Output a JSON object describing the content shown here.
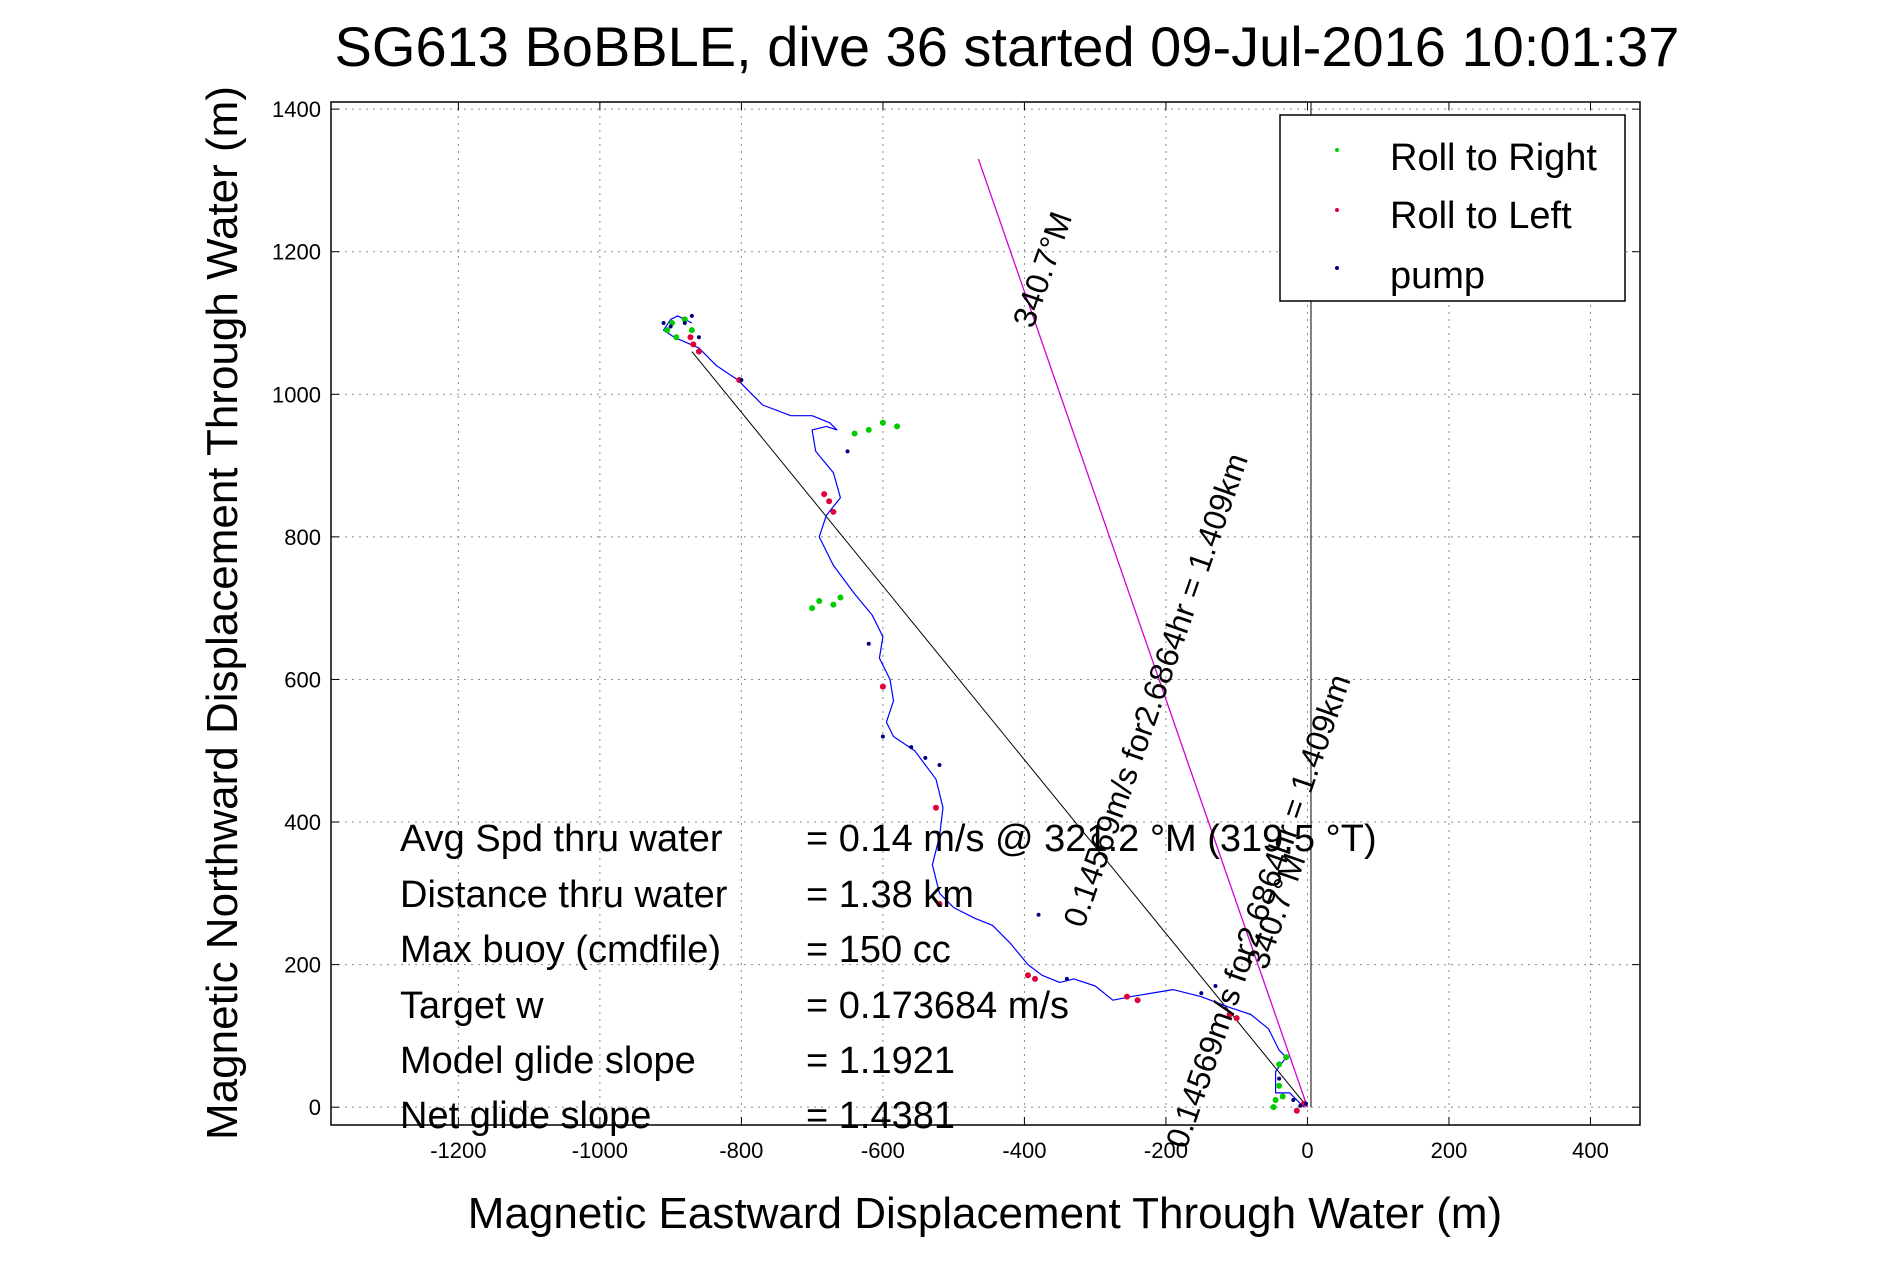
{
  "chart_data": {
    "type": "scatter",
    "title": "SG613 BoBBLE, dive 36 started 09-Jul-2016 10:01:37",
    "xlabel": "Magnetic Eastward Displacement Through Water (m)",
    "ylabel": "Magnetic Northward Displacement Through Water (m)",
    "xlim": [
      -1380,
      470
    ],
    "ylim": [
      -25,
      1410
    ],
    "xticks": [
      -1200,
      -1000,
      -800,
      -600,
      -400,
      -200,
      0,
      200,
      400
    ],
    "yticks": [
      0,
      200,
      400,
      600,
      800,
      1000,
      1200,
      1400
    ],
    "xtick_labels": [
      "-1200",
      "-1000",
      "-800",
      "-600",
      "-400",
      "-200",
      "0",
      "200",
      "400"
    ],
    "ytick_labels": [
      "0",
      "200",
      "400",
      "600",
      "800",
      "1000",
      "1200",
      "1400"
    ],
    "grid": true,
    "legend_position": "top-right",
    "legend": [
      {
        "label": "Roll to Right",
        "color": "#00cc00"
      },
      {
        "label": "Roll to Left",
        "color": "#e0003c"
      },
      {
        "label": "pump",
        "color": "#000080"
      }
    ],
    "track_color": "#0000ff",
    "track": {
      "x": [
        -5,
        -25,
        -45,
        -45,
        -30,
        -40,
        -55,
        -80,
        -110,
        -150,
        -190,
        -220,
        -250,
        -275,
        -300,
        -330,
        -350,
        -375,
        -395,
        -420,
        -445,
        -470,
        -500,
        -520,
        -530,
        -520,
        -515,
        -525,
        -555,
        -585,
        -595,
        -585,
        -590,
        -605,
        -600,
        -615,
        -640,
        -670,
        -690,
        -680,
        -660,
        -670,
        -695,
        -700,
        -680,
        -665,
        -675,
        -700,
        -730,
        -770,
        -785,
        -805,
        -835,
        -860,
        -895,
        -910,
        -900,
        -890,
        -880,
        -870
      ],
      "y": [
        0,
        20,
        20,
        50,
        70,
        80,
        110,
        130,
        140,
        155,
        165,
        160,
        155,
        150,
        170,
        180,
        175,
        185,
        200,
        230,
        255,
        265,
        280,
        300,
        340,
        380,
        420,
        460,
        500,
        520,
        540,
        570,
        600,
        630,
        660,
        690,
        720,
        760,
        800,
        830,
        855,
        890,
        920,
        950,
        955,
        950,
        960,
        970,
        970,
        985,
        1000,
        1020,
        1040,
        1065,
        1080,
        1090,
        1105,
        1110,
        1105,
        1100
      ]
    },
    "roll_right": {
      "x": [
        -40,
        -45,
        -35,
        -30,
        -40,
        -48,
        -690,
        -700,
        -670,
        -660,
        -620,
        -640,
        -600,
        -580,
        -898,
        -905,
        -892,
        -870,
        -880
      ],
      "y": [
        30,
        10,
        15,
        70,
        60,
        0,
        710,
        700,
        705,
        715,
        950,
        945,
        960,
        955,
        1100,
        1090,
        1080,
        1090,
        1105
      ]
    },
    "roll_left": {
      "x": [
        -5,
        -15,
        -100,
        -110,
        -240,
        -255,
        -385,
        -395,
        -520,
        -525,
        -600,
        -670,
        -676,
        -683,
        -803,
        -860,
        -868,
        -872
      ],
      "y": [
        5,
        -5,
        125,
        130,
        150,
        155,
        180,
        185,
        285,
        420,
        590,
        835,
        850,
        860,
        1020,
        1060,
        1070,
        1080
      ]
    },
    "pump": {
      "x": [
        -880,
        -910,
        -900,
        -870,
        -860,
        -800,
        -650,
        -620,
        -600,
        -560,
        -540,
        -520,
        -380,
        -340,
        -130,
        -150,
        -40,
        -20,
        -2,
        -10
      ],
      "y": [
        1100,
        1100,
        1095,
        1110,
        1080,
        1020,
        920,
        650,
        520,
        505,
        490,
        480,
        270,
        180,
        170,
        160,
        40,
        10,
        5,
        2
      ]
    },
    "net_course_line": {
      "x": [
        -870,
        0
      ],
      "y": [
        1060,
        0
      ]
    },
    "heading_line": {
      "x": [
        -465,
        0
      ],
      "y": [
        1330,
        0
      ],
      "color": "#d200d2"
    },
    "vertical_line": {
      "x": [
        5,
        5
      ],
      "y": [
        0,
        1410
      ]
    },
    "annotations": [
      {
        "text": "340.7°M",
        "x": -360,
        "y": 1170,
        "angle": -70.7
      },
      {
        "text": "0.14569m/s for2.6864hr = 1.409km",
        "x": -200,
        "y": 580,
        "angle": -70.7
      },
      {
        "text": "0.14569m/s for2.6864hr = 1.409km",
        "x": -55,
        "y": 270,
        "angle": -70.7
      },
      {
        "text": "340.7°M",
        "x": -30,
        "y": 270,
        "angle": -70.7
      }
    ],
    "stats": [
      {
        "label": "Avg Spd thru water",
        "value": "=  0.14 m/s @ 321.2 °M (319.5 °T)"
      },
      {
        "label": "Distance thru water",
        "value": "=  1.38 km"
      },
      {
        "label": "Max buoy (cmdfile)",
        "value": "= 150 cc"
      },
      {
        "label": "Target w",
        "value": "= 0.173684 m/s"
      },
      {
        "label": "Model glide slope",
        "value": "= 1.1921"
      },
      {
        "label": "Net glide slope",
        "value": "= 1.4381"
      }
    ]
  }
}
